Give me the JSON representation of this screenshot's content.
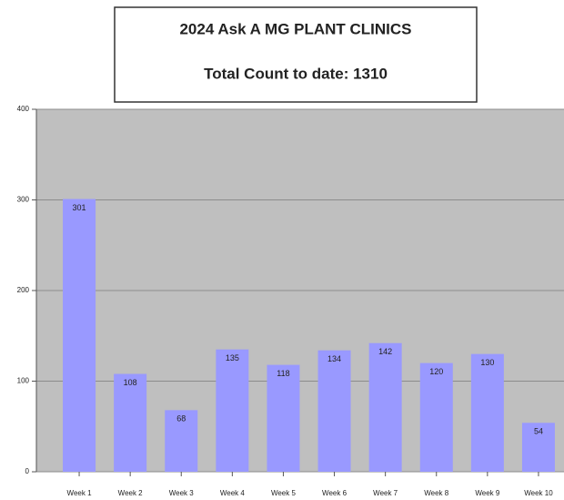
{
  "chart_data": {
    "type": "bar",
    "title": "2024 Ask A MG PLANT CLINICS",
    "subtitle": "Total Count to date: 1310",
    "categories": [
      "Week 1",
      "Week 2",
      "Week 3",
      "Week 4",
      "Week 5",
      "Week 6",
      "Week 7",
      "Week 8",
      "Week 9",
      "Week 10"
    ],
    "values": [
      301,
      108,
      68,
      135,
      118,
      134,
      142,
      120,
      130,
      54
    ],
    "color": "#9999ff",
    "ylim": [
      0,
      400
    ],
    "yticks": [
      0,
      100,
      200,
      300,
      400
    ],
    "grid": true
  }
}
